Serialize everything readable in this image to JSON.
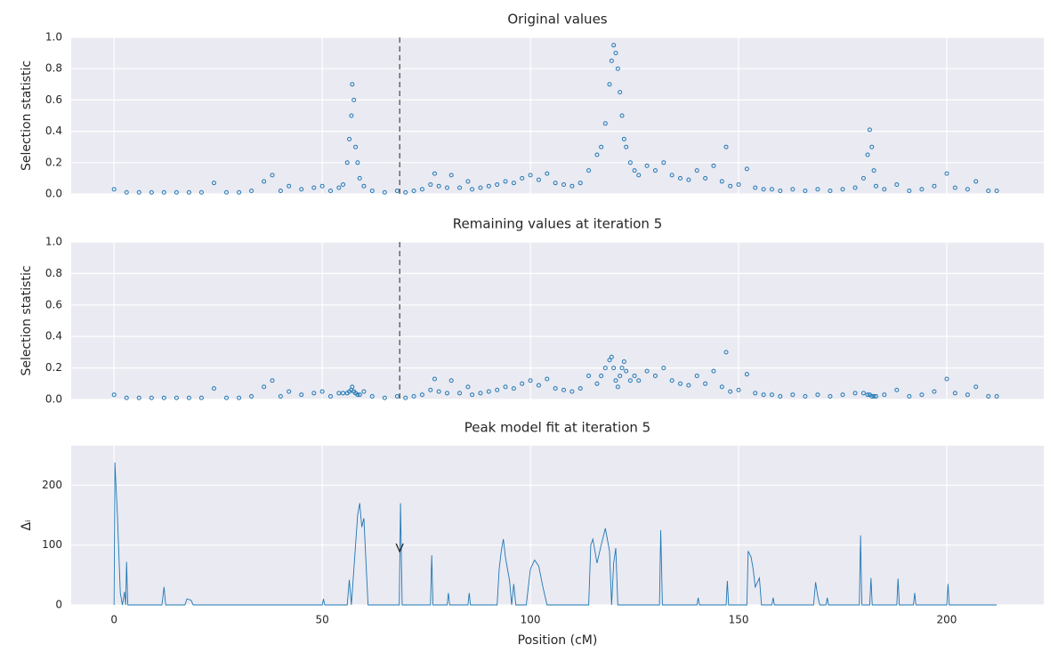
{
  "chart_data": [
    {
      "type": "scatter",
      "title": "Original values",
      "ylabel": "Selection statistic",
      "color": "#1f77b4",
      "xlim": [
        -10.3,
        223.3
      ],
      "xticks": [
        0,
        50,
        100,
        150,
        200
      ],
      "ylim": [
        0,
        1.0
      ],
      "yticks": [
        {
          "value": 0,
          "label": "0.0"
        },
        {
          "value": 0.2,
          "label": "0.2"
        },
        {
          "value": 0.4,
          "label": "0.4"
        },
        {
          "value": 0.6,
          "label": "0.6"
        },
        {
          "value": 0.8,
          "label": "0.8"
        },
        {
          "value": 1.0,
          "label": "1.0"
        }
      ],
      "grid": true,
      "peak_position": 68.6,
      "x": [
        0,
        3,
        6,
        9,
        12,
        15,
        18,
        21,
        24,
        27,
        30,
        33,
        36,
        38,
        40,
        42,
        45,
        48,
        50,
        52,
        54,
        55,
        56,
        56.5,
        57,
        57.2,
        57.6,
        58,
        58.5,
        59,
        60,
        62,
        65,
        68,
        70,
        72,
        74,
        76,
        77,
        78,
        80,
        81,
        83,
        85,
        86,
        88,
        90,
        92,
        94,
        96,
        98,
        100,
        102,
        104,
        106,
        108,
        110,
        112,
        114,
        116,
        117,
        118,
        119,
        119.5,
        120,
        120.5,
        121,
        121.5,
        122,
        122.5,
        123,
        124,
        125,
        126,
        128,
        130,
        132,
        134,
        136,
        138,
        140,
        142,
        144,
        146,
        147,
        148,
        150,
        152,
        154,
        156,
        158,
        160,
        163,
        166,
        169,
        172,
        175,
        178,
        180,
        181,
        181.5,
        182,
        182.5,
        183,
        185,
        188,
        191,
        194,
        197,
        200,
        202,
        205,
        207,
        210,
        212
      ],
      "values": [
        0.03,
        0.01,
        0.01,
        0.01,
        0.01,
        0.01,
        0.01,
        0.01,
        0.07,
        0.01,
        0.01,
        0.02,
        0.08,
        0.12,
        0.02,
        0.05,
        0.03,
        0.04,
        0.05,
        0.02,
        0.04,
        0.06,
        0.2,
        0.35,
        0.5,
        0.7,
        0.6,
        0.3,
        0.2,
        0.1,
        0.05,
        0.02,
        0.01,
        0.02,
        0.01,
        0.02,
        0.03,
        0.06,
        0.13,
        0.05,
        0.04,
        0.12,
        0.04,
        0.08,
        0.03,
        0.04,
        0.05,
        0.06,
        0.08,
        0.07,
        0.1,
        0.12,
        0.09,
        0.13,
        0.07,
        0.06,
        0.05,
        0.07,
        0.15,
        0.25,
        0.3,
        0.45,
        0.7,
        0.85,
        0.95,
        0.9,
        0.8,
        0.65,
        0.5,
        0.35,
        0.3,
        0.2,
        0.15,
        0.12,
        0.18,
        0.15,
        0.2,
        0.12,
        0.1,
        0.09,
        0.15,
        0.1,
        0.18,
        0.08,
        0.3,
        0.05,
        0.06,
        0.16,
        0.04,
        0.03,
        0.03,
        0.02,
        0.03,
        0.02,
        0.03,
        0.02,
        0.03,
        0.04,
        0.1,
        0.25,
        0.41,
        0.3,
        0.15,
        0.05,
        0.03,
        0.06,
        0.02,
        0.03,
        0.05,
        0.13,
        0.04,
        0.03,
        0.08,
        0.02,
        0.02
      ]
    },
    {
      "type": "scatter",
      "title": "Remaining values at iteration 5",
      "ylabel": "Selection statistic",
      "color": "#1f77b4",
      "xlim": [
        -10.3,
        223.3
      ],
      "xticks": [
        0,
        50,
        100,
        150,
        200
      ],
      "ylim": [
        0,
        1.0
      ],
      "yticks": [
        {
          "value": 0,
          "label": "0.0"
        },
        {
          "value": 0.2,
          "label": "0.2"
        },
        {
          "value": 0.4,
          "label": "0.4"
        },
        {
          "value": 0.6,
          "label": "0.6"
        },
        {
          "value": 0.8,
          "label": "0.8"
        },
        {
          "value": 1.0,
          "label": "1.0"
        }
      ],
      "grid": true,
      "peak_position": 68.6,
      "x": [
        0,
        3,
        6,
        9,
        12,
        15,
        18,
        21,
        24,
        27,
        30,
        33,
        36,
        38,
        40,
        42,
        45,
        48,
        50,
        52,
        54,
        55,
        56,
        56.5,
        57,
        57.2,
        57.6,
        58,
        58.5,
        59,
        60,
        62,
        65,
        68,
        70,
        72,
        74,
        76,
        77,
        78,
        80,
        81,
        83,
        85,
        86,
        88,
        90,
        92,
        94,
        96,
        98,
        100,
        102,
        104,
        106,
        108,
        110,
        112,
        114,
        116,
        117,
        118,
        119,
        119.5,
        120,
        120.5,
        121,
        121.5,
        122,
        122.5,
        123,
        124,
        125,
        126,
        128,
        130,
        132,
        134,
        136,
        138,
        140,
        142,
        144,
        146,
        147,
        148,
        150,
        152,
        154,
        156,
        158,
        160,
        163,
        166,
        169,
        172,
        175,
        178,
        180,
        181,
        181.5,
        182,
        182.5,
        183,
        185,
        188,
        191,
        194,
        197,
        200,
        202,
        205,
        207,
        210,
        212
      ],
      "values": [
        0.03,
        0.01,
        0.01,
        0.01,
        0.01,
        0.01,
        0.01,
        0.01,
        0.07,
        0.01,
        0.01,
        0.02,
        0.08,
        0.12,
        0.02,
        0.05,
        0.03,
        0.04,
        0.05,
        0.02,
        0.04,
        0.04,
        0.04,
        0.05,
        0.06,
        0.08,
        0.05,
        0.04,
        0.03,
        0.03,
        0.05,
        0.02,
        0.01,
        0.02,
        0.01,
        0.02,
        0.03,
        0.06,
        0.13,
        0.05,
        0.04,
        0.12,
        0.04,
        0.08,
        0.03,
        0.04,
        0.05,
        0.06,
        0.08,
        0.07,
        0.1,
        0.12,
        0.09,
        0.13,
        0.07,
        0.06,
        0.05,
        0.07,
        0.15,
        0.1,
        0.15,
        0.2,
        0.25,
        0.27,
        0.2,
        0.12,
        0.08,
        0.15,
        0.2,
        0.24,
        0.18,
        0.12,
        0.15,
        0.12,
        0.18,
        0.15,
        0.2,
        0.12,
        0.1,
        0.09,
        0.15,
        0.1,
        0.18,
        0.08,
        0.3,
        0.05,
        0.06,
        0.16,
        0.04,
        0.03,
        0.03,
        0.02,
        0.03,
        0.02,
        0.03,
        0.02,
        0.03,
        0.04,
        0.04,
        0.03,
        0.03,
        0.02,
        0.02,
        0.02,
        0.03,
        0.06,
        0.02,
        0.03,
        0.05,
        0.13,
        0.04,
        0.03,
        0.08,
        0.02,
        0.02
      ]
    },
    {
      "type": "line",
      "title": "Peak model fit at iteration 5",
      "ylabel": "Δᵢ",
      "xlabel": "Position (cM)",
      "color": "#1f77b4",
      "xlim": [
        -10.3,
        223.3
      ],
      "xticks": [
        0,
        50,
        100,
        150,
        200
      ],
      "ylim": [
        0,
        266
      ],
      "yticks": [
        0,
        100,
        200
      ],
      "grid": true,
      "peak_marker": {
        "x": 68.6,
        "y": 95
      },
      "x": [
        0,
        0.2,
        0.8,
        1.5,
        2,
        2.5,
        2.8,
        3,
        3.3,
        11.5,
        12,
        12.4,
        17,
        17.5,
        18.5,
        19,
        50,
        50.3,
        50.6,
        56,
        56.5,
        57,
        58,
        58.5,
        59,
        59.5,
        60,
        61,
        68.5,
        68.8,
        69.2,
        76,
        76.3,
        76.6,
        80,
        80.3,
        80.6,
        85,
        85.3,
        85.6,
        92,
        92.5,
        93,
        93.5,
        94,
        95,
        95.5,
        96,
        96.5,
        99,
        100,
        101,
        102,
        103,
        104,
        114,
        114.5,
        115,
        116,
        117,
        118,
        119,
        119.5,
        120,
        120.5,
        121,
        131,
        131.3,
        131.7,
        140,
        140.3,
        140.6,
        147,
        147.3,
        147.6,
        152,
        152.3,
        153,
        153.5,
        154,
        155,
        155.5,
        158,
        158.3,
        158.6,
        168,
        168.5,
        169,
        169.5,
        171,
        171.3,
        171.6,
        179,
        179.3,
        179.6,
        181.5,
        181.8,
        182.1,
        188,
        188.3,
        188.6,
        192,
        192.3,
        192.6,
        200,
        200.3,
        200.6,
        212
      ],
      "values": [
        0,
        238,
        150,
        20,
        0,
        22,
        0,
        72,
        0,
        0,
        30,
        0,
        0,
        10,
        8,
        0,
        0,
        10,
        0,
        0,
        42,
        0,
        100,
        150,
        170,
        130,
        145,
        0,
        0,
        170,
        0,
        0,
        83,
        0,
        0,
        20,
        0,
        0,
        20,
        0,
        0,
        60,
        90,
        110,
        80,
        40,
        0,
        35,
        0,
        0,
        60,
        75,
        65,
        30,
        0,
        0,
        100,
        110,
        70,
        100,
        128,
        90,
        0,
        70,
        95,
        0,
        0,
        125,
        0,
        0,
        12,
        0,
        0,
        40,
        0,
        0,
        90,
        80,
        60,
        30,
        45,
        0,
        0,
        12,
        0,
        0,
        38,
        15,
        0,
        0,
        12,
        0,
        0,
        116,
        0,
        0,
        45,
        0,
        0,
        44,
        0,
        0,
        20,
        0,
        0,
        35,
        0,
        0
      ]
    }
  ]
}
